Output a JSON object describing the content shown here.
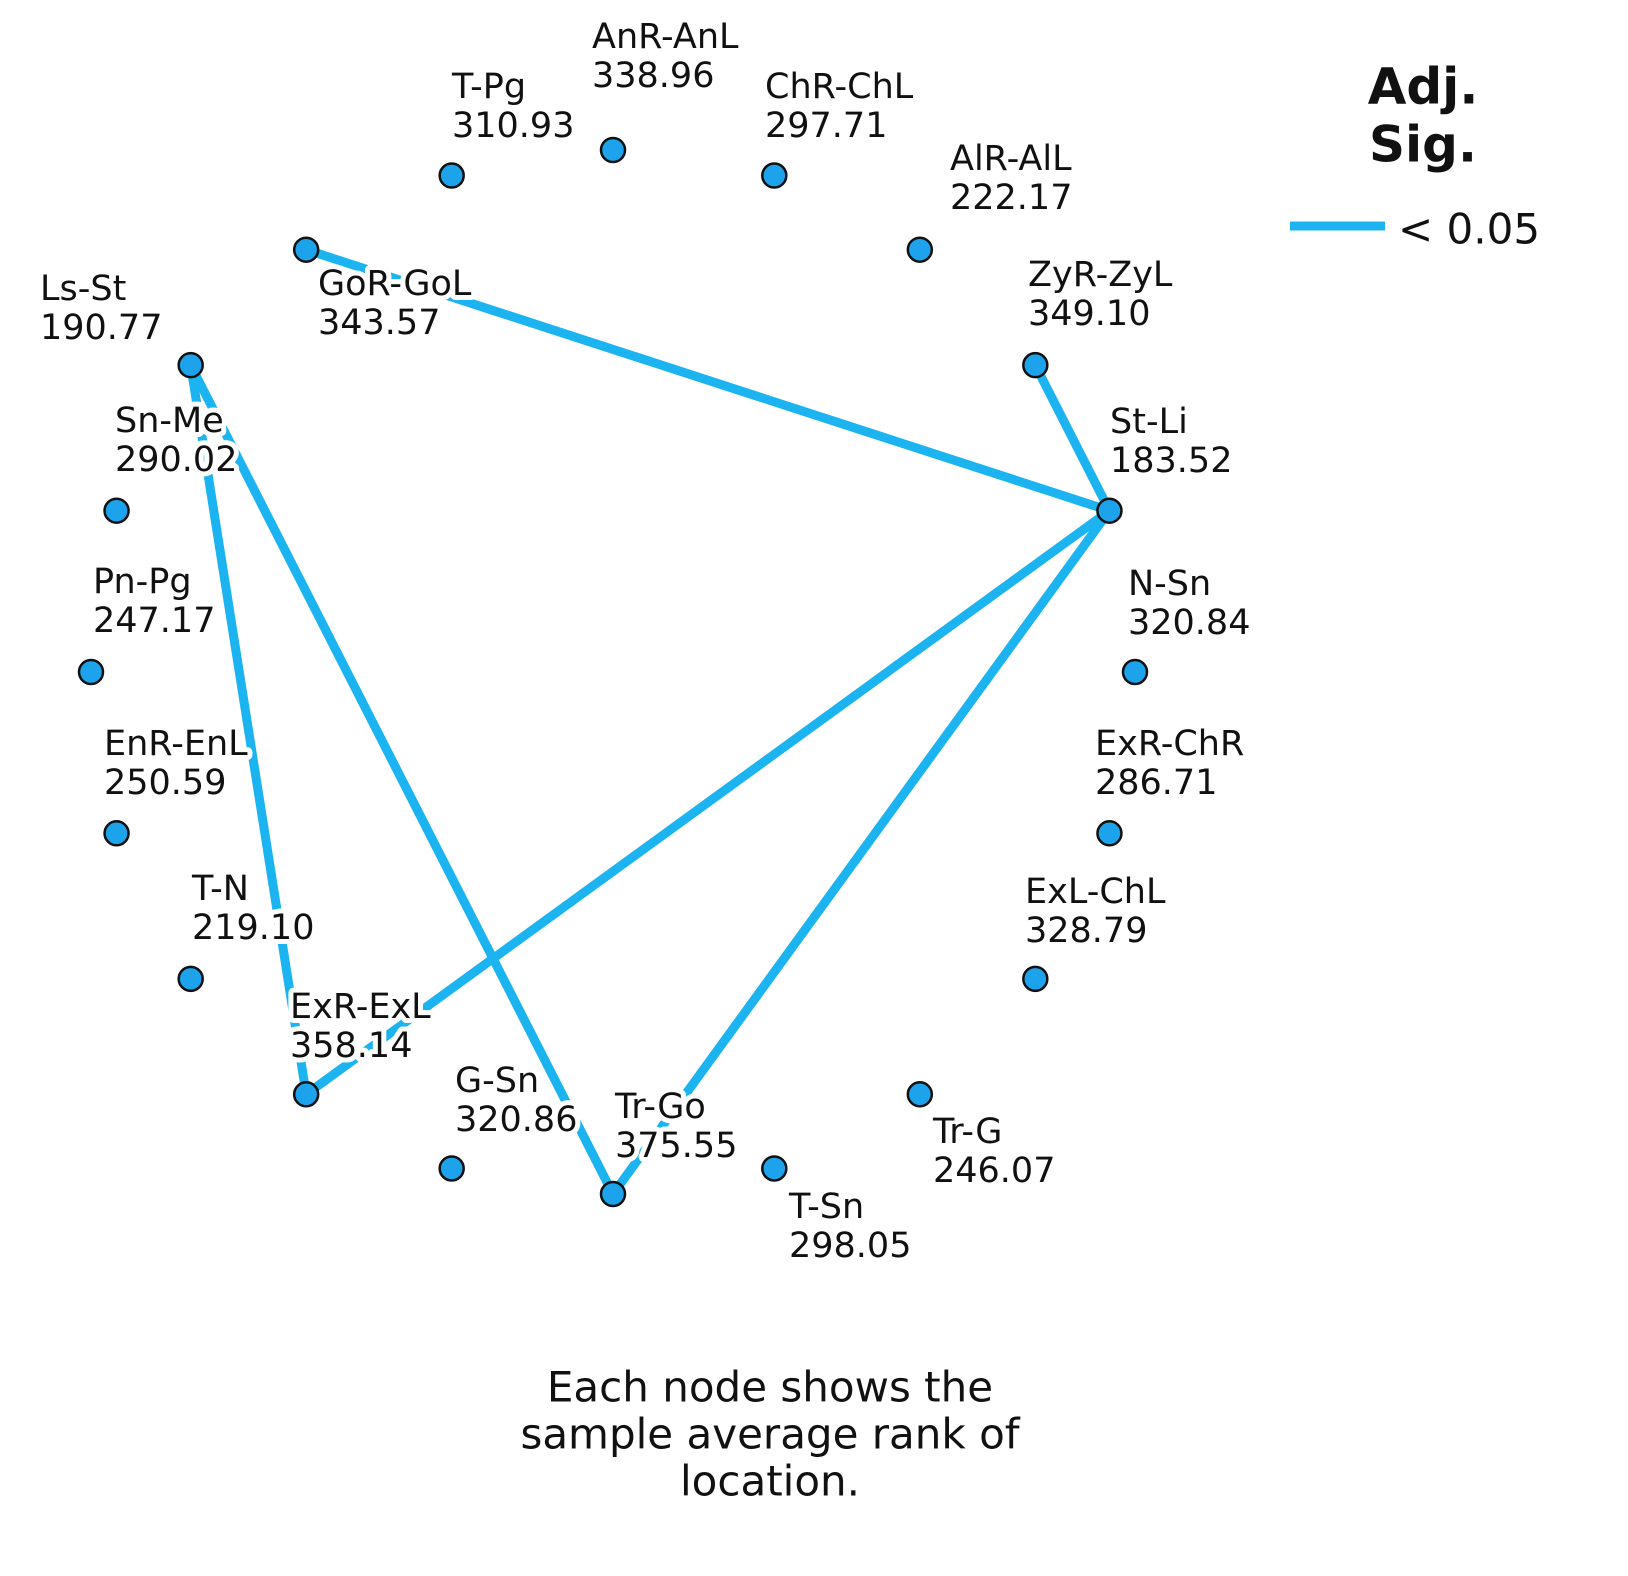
{
  "legend": {
    "title": [
      "Adj.",
      "Sig."
    ],
    "label": "< 0.05"
  },
  "nodes": [
    {
      "name": "AnR-AnL",
      "value": "338.96"
    },
    {
      "name": "ChR-ChL",
      "value": "297.71"
    },
    {
      "name": "AlR-AlL",
      "value": "222.17"
    },
    {
      "name": "ZyR-ZyL",
      "value": "349.10"
    },
    {
      "name": "St-Li",
      "value": "183.52"
    },
    {
      "name": "N-Sn",
      "value": "320.84"
    },
    {
      "name": "ExR-ChR",
      "value": "286.71"
    },
    {
      "name": "ExL-ChL",
      "value": "328.79"
    },
    {
      "name": "Tr-G",
      "value": "246.07"
    },
    {
      "name": "T-Sn",
      "value": "298.05"
    },
    {
      "name": "Tr-Go",
      "value": "375.55"
    },
    {
      "name": "G-Sn",
      "value": "320.86"
    },
    {
      "name": "ExR-ExL",
      "value": "358.14"
    },
    {
      "name": "T-N",
      "value": "219.10"
    },
    {
      "name": "EnR-EnL",
      "value": "250.59"
    },
    {
      "name": "Pn-Pg",
      "value": "247.17"
    },
    {
      "name": "Sn-Me",
      "value": "290.02"
    },
    {
      "name": "Ls-St",
      "value": "190.77"
    },
    {
      "name": "GoR-GoL",
      "value": "343.57"
    },
    {
      "name": "T-Pg",
      "value": "310.93"
    }
  ],
  "footnote": [
    "Each node shows the",
    "sample average rank of",
    "location."
  ]
}
